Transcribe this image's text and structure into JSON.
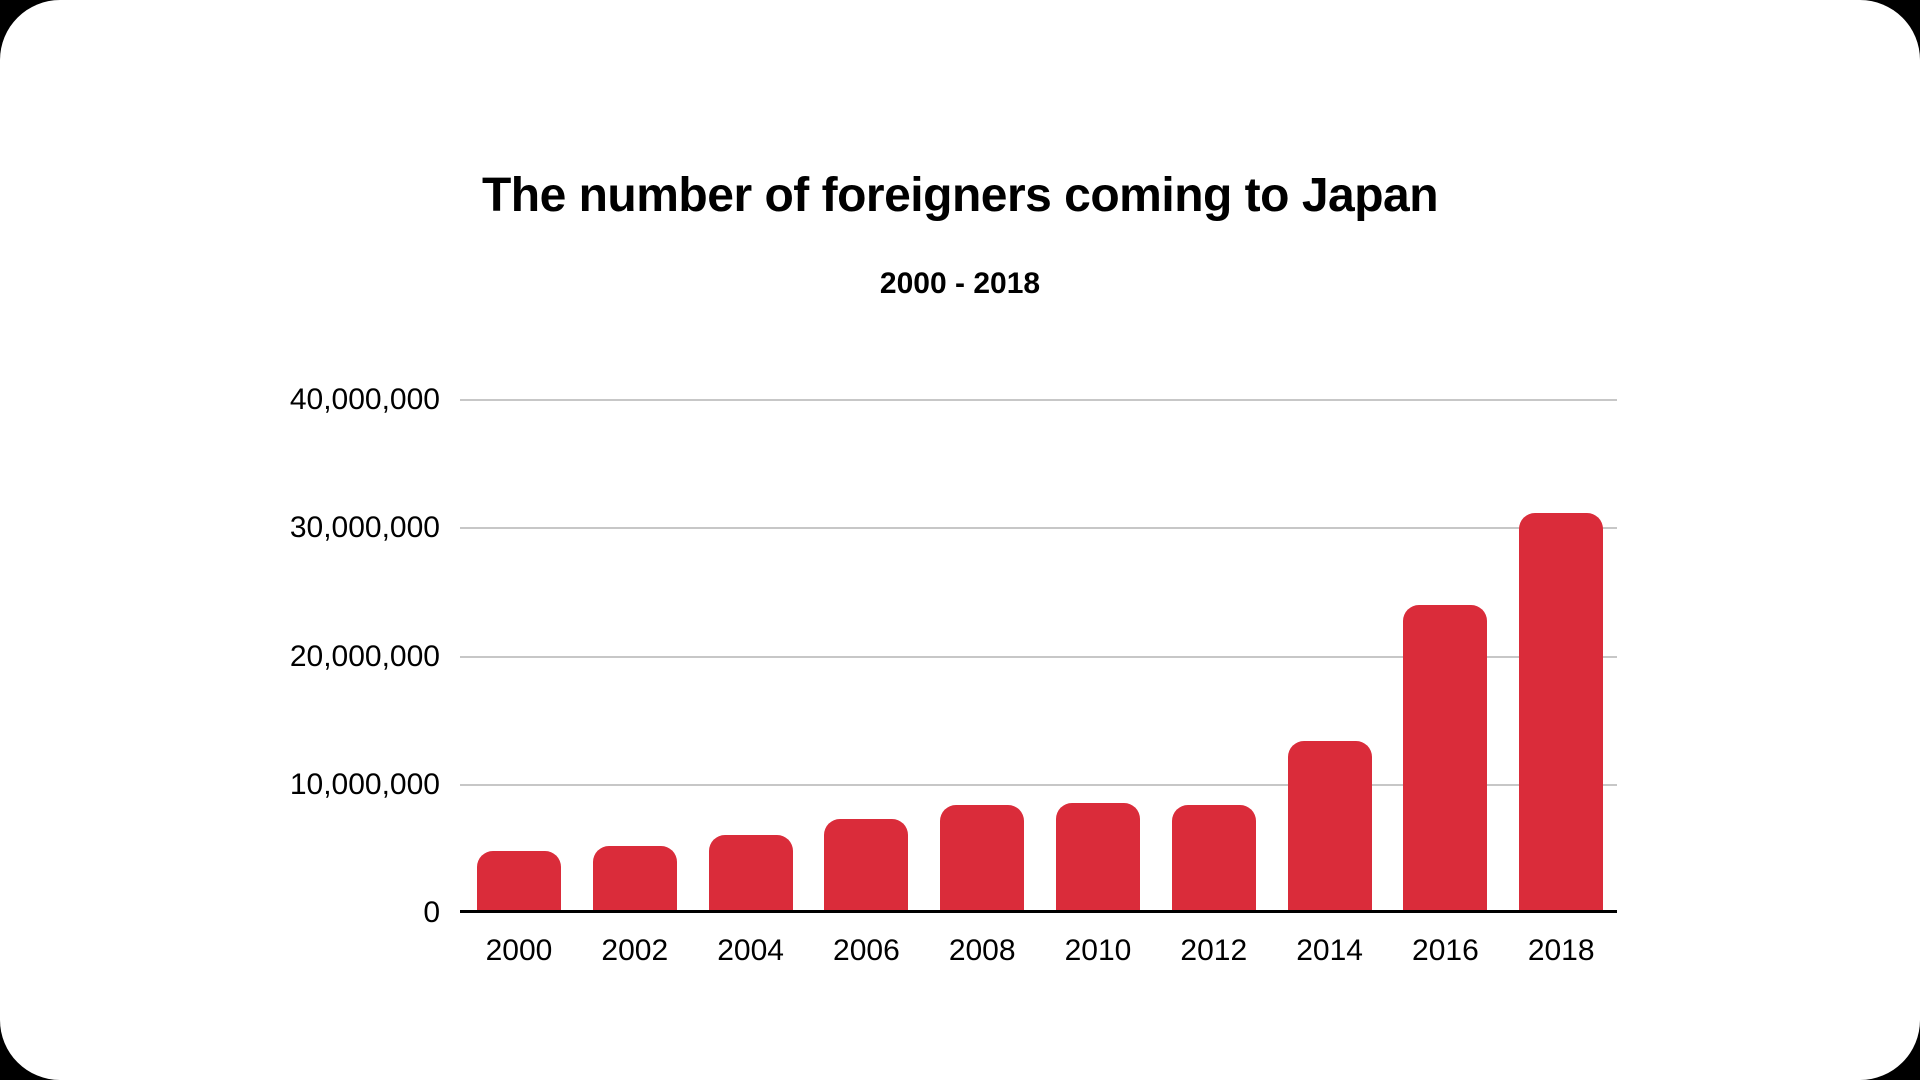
{
  "page": {
    "background_color": "#000000",
    "canvas_color": "#FFFFFF"
  },
  "chart_data": {
    "type": "bar",
    "title": "The number of foreigners coming to Japan",
    "subtitle": "2000 - 2018",
    "categories": [
      "2000",
      "2002",
      "2004",
      "2006",
      "2008",
      "2010",
      "2012",
      "2014",
      "2016",
      "2018"
    ],
    "values": [
      4800000,
      5200000,
      6100000,
      7300000,
      8400000,
      8600000,
      8400000,
      13400000,
      24000000,
      31200000
    ],
    "xlabel": "",
    "ylabel": "",
    "ylim": [
      0,
      40000000
    ],
    "yticks": [
      0,
      10000000,
      20000000,
      30000000,
      40000000
    ],
    "ytick_labels": [
      "0",
      "10,000,000",
      "20,000,000",
      "30,000,000",
      "40,000,000"
    ],
    "grid": true,
    "legend": false,
    "bar_color": "#DA2C3A",
    "gridline_color": "#C7C7C7",
    "axis_line_color": "#000000",
    "text_color": "#000000"
  }
}
